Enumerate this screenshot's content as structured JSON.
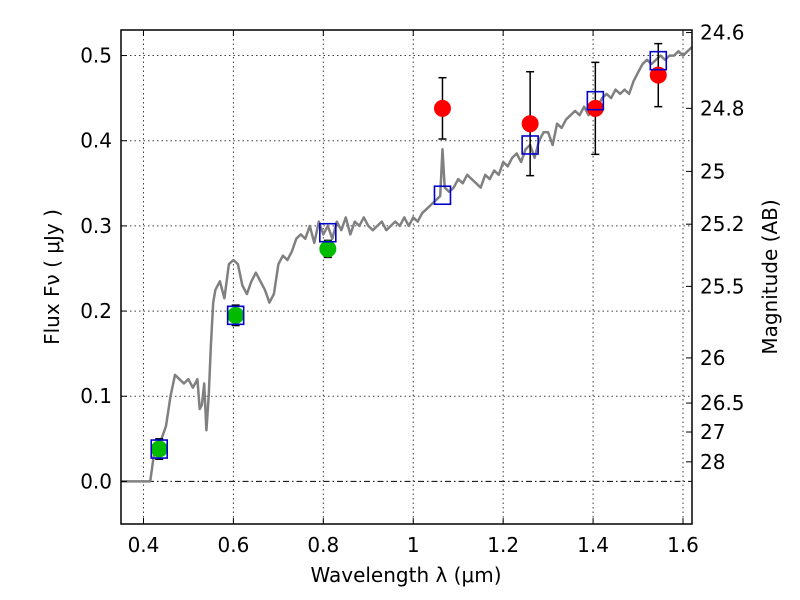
{
  "chart_data": {
    "type": "scatter",
    "xlabel": "Wavelength  λ (μm)",
    "ylabel": "Flux  Fν  ( μJy )",
    "ylabel_right": "Magnitude (AB)",
    "xlim": [
      0.35,
      1.62
    ],
    "ylim": [
      -0.05,
      0.53
    ],
    "grid": true,
    "x_ticks": [
      0.4,
      0.6,
      0.8,
      1.0,
      1.2,
      1.4,
      1.6
    ],
    "x_tick_labels": [
      "0.4",
      "0.6",
      "0.8",
      "1",
      "1.2",
      "1.4",
      "1.6"
    ],
    "y_ticks": [
      0.0,
      0.1,
      0.2,
      0.3,
      0.4,
      0.5
    ],
    "y_tick_labels": [
      "0.0",
      "0.1",
      "0.2",
      "0.3",
      "0.4",
      "0.5"
    ],
    "right_ticks": [
      {
        "flux": 0.527,
        "label": "24.6"
      },
      {
        "flux": 0.438,
        "label": "24.8"
      },
      {
        "flux": 0.364,
        "label": "25"
      },
      {
        "flux": 0.302,
        "label": "25.2"
      },
      {
        "flux": 0.229,
        "label": "25.5"
      },
      {
        "flux": 0.145,
        "label": "26"
      },
      {
        "flux": 0.092,
        "label": "26.5"
      },
      {
        "flux": 0.058,
        "label": "27"
      },
      {
        "flux": 0.023,
        "label": "28"
      }
    ],
    "zero_line": 0.0,
    "series": [
      {
        "kind": "model-spectrum",
        "color": "#808080",
        "x": [
          0.35,
          0.415,
          0.425,
          0.44,
          0.45,
          0.46,
          0.47,
          0.48,
          0.49,
          0.5,
          0.51,
          0.52,
          0.525,
          0.53,
          0.535,
          0.54,
          0.545,
          0.55,
          0.555,
          0.56,
          0.57,
          0.58,
          0.59,
          0.6,
          0.61,
          0.62,
          0.63,
          0.64,
          0.65,
          0.66,
          0.67,
          0.68,
          0.69,
          0.7,
          0.71,
          0.72,
          0.73,
          0.74,
          0.75,
          0.76,
          0.77,
          0.78,
          0.79,
          0.8,
          0.81,
          0.82,
          0.83,
          0.84,
          0.85,
          0.86,
          0.87,
          0.88,
          0.89,
          0.9,
          0.91,
          0.92,
          0.93,
          0.94,
          0.95,
          0.96,
          0.97,
          0.98,
          0.99,
          1.0,
          1.01,
          1.02,
          1.03,
          1.04,
          1.05,
          1.06,
          1.065,
          1.07,
          1.08,
          1.09,
          1.1,
          1.11,
          1.12,
          1.13,
          1.14,
          1.15,
          1.16,
          1.17,
          1.18,
          1.19,
          1.2,
          1.21,
          1.22,
          1.23,
          1.24,
          1.25,
          1.26,
          1.27,
          1.28,
          1.29,
          1.3,
          1.31,
          1.32,
          1.33,
          1.34,
          1.35,
          1.36,
          1.37,
          1.38,
          1.39,
          1.4,
          1.41,
          1.42,
          1.43,
          1.44,
          1.45,
          1.46,
          1.47,
          1.48,
          1.49,
          1.5,
          1.51,
          1.52,
          1.53,
          1.54,
          1.55,
          1.56,
          1.57,
          1.58,
          1.59,
          1.6,
          1.62
        ],
        "y": [
          0.0,
          0.0,
          0.038,
          0.05,
          0.065,
          0.1,
          0.125,
          0.12,
          0.115,
          0.12,
          0.11,
          0.12,
          0.085,
          0.09,
          0.115,
          0.06,
          0.1,
          0.16,
          0.21,
          0.225,
          0.235,
          0.215,
          0.255,
          0.26,
          0.255,
          0.23,
          0.22,
          0.235,
          0.245,
          0.235,
          0.225,
          0.21,
          0.22,
          0.255,
          0.265,
          0.26,
          0.27,
          0.285,
          0.29,
          0.285,
          0.3,
          0.28,
          0.305,
          0.29,
          0.3,
          0.285,
          0.305,
          0.295,
          0.31,
          0.29,
          0.305,
          0.3,
          0.31,
          0.3,
          0.295,
          0.3,
          0.305,
          0.295,
          0.3,
          0.305,
          0.3,
          0.31,
          0.3,
          0.31,
          0.305,
          0.315,
          0.32,
          0.325,
          0.33,
          0.335,
          0.39,
          0.345,
          0.34,
          0.345,
          0.355,
          0.35,
          0.36,
          0.355,
          0.35,
          0.345,
          0.36,
          0.355,
          0.365,
          0.36,
          0.375,
          0.37,
          0.38,
          0.385,
          0.375,
          0.39,
          0.395,
          0.38,
          0.4,
          0.41,
          0.41,
          0.395,
          0.42,
          0.415,
          0.425,
          0.43,
          0.435,
          0.43,
          0.44,
          0.43,
          0.445,
          0.44,
          0.45,
          0.455,
          0.45,
          0.46,
          0.455,
          0.46,
          0.455,
          0.47,
          0.48,
          0.49,
          0.495,
          0.49,
          0.495,
          0.5,
          0.495,
          0.5,
          0.5,
          0.505,
          0.5,
          0.51
        ]
      },
      {
        "kind": "model-photometry",
        "marker": "open-square",
        "color": "#0000cc",
        "x": [
          0.435,
          0.605,
          0.81,
          1.065,
          1.26,
          1.405,
          1.545
        ],
        "y": [
          0.038,
          0.195,
          0.292,
          0.336,
          0.395,
          0.447,
          0.494
        ]
      },
      {
        "kind": "detections",
        "marker": "filled-circle",
        "color": "#00bb00",
        "x": [
          0.435,
          0.605,
          0.81
        ],
        "y": [
          0.038,
          0.195,
          0.273
        ],
        "yerr": [
          0.012,
          0.012,
          0.01
        ]
      },
      {
        "kind": "detections",
        "marker": "filled-circle",
        "color": "#ff0000",
        "x": [
          1.065,
          1.26,
          1.405,
          1.545
        ],
        "y": [
          0.438,
          0.42,
          0.438,
          0.477
        ],
        "yerr": [
          0.036,
          0.061,
          0.054,
          0.037
        ]
      }
    ]
  }
}
